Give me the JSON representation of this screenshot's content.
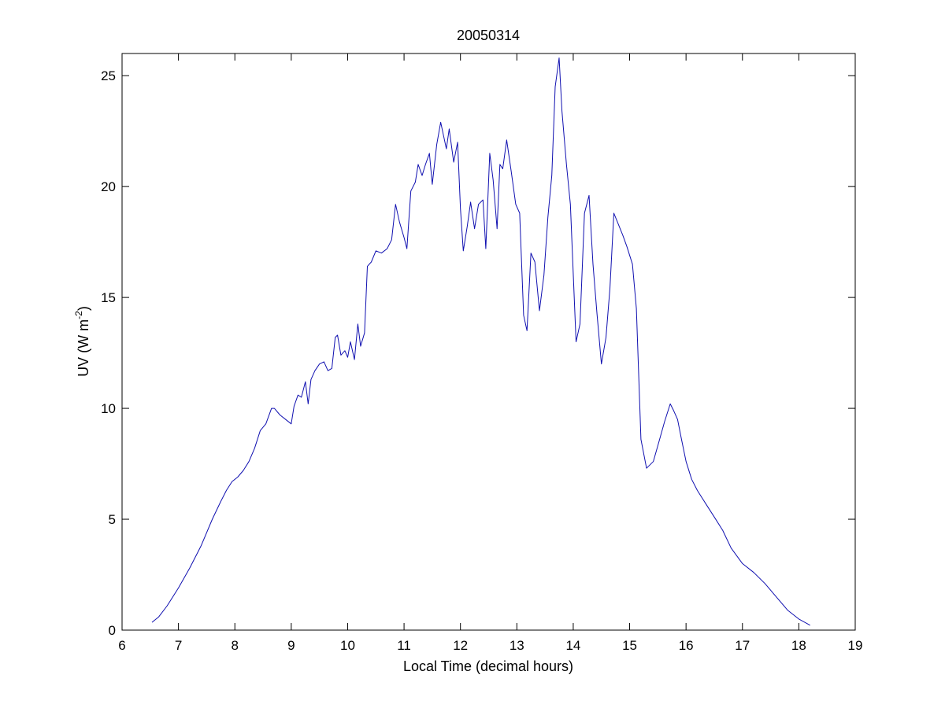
{
  "chart_data": {
    "type": "line",
    "title": "20050314",
    "xlabel": "Local Time (decimal hours)",
    "ylabel": "UV (W m",
    "ylabel_sup": "-2",
    "ylabel_close": ")",
    "xlim": [
      6,
      19
    ],
    "ylim": [
      0,
      26
    ],
    "xticks": [
      6,
      7,
      8,
      9,
      10,
      11,
      12,
      13,
      14,
      15,
      16,
      17,
      18,
      19
    ],
    "yticks": [
      0,
      5,
      10,
      15,
      20,
      25
    ],
    "grid": false,
    "legend": "none",
    "series": [
      {
        "color": "#1010b0",
        "x": [
          6.53,
          6.65,
          6.8,
          7.0,
          7.2,
          7.4,
          7.6,
          7.75,
          7.85,
          7.95,
          8.05,
          8.15,
          8.25,
          8.35,
          8.45,
          8.55,
          8.65,
          8.7,
          8.8,
          8.9,
          9.0,
          9.05,
          9.12,
          9.18,
          9.25,
          9.3,
          9.35,
          9.42,
          9.5,
          9.58,
          9.65,
          9.72,
          9.78,
          9.82,
          9.88,
          9.95,
          10.0,
          10.05,
          10.12,
          10.18,
          10.23,
          10.3,
          10.35,
          10.42,
          10.5,
          10.6,
          10.7,
          10.78,
          10.85,
          10.92,
          11.0,
          11.05,
          11.12,
          11.2,
          11.25,
          11.32,
          11.38,
          11.45,
          11.5,
          11.58,
          11.65,
          11.7,
          11.75,
          11.8,
          11.88,
          11.95,
          12.0,
          12.05,
          12.12,
          12.18,
          12.25,
          12.32,
          12.4,
          12.45,
          12.52,
          12.58,
          12.65,
          12.7,
          12.75,
          12.82,
          12.9,
          12.98,
          13.05,
          13.12,
          13.18,
          13.25,
          13.32,
          13.4,
          13.48,
          13.55,
          13.62,
          13.68,
          13.75,
          13.8,
          13.88,
          13.95,
          14.05,
          14.12,
          14.2,
          14.28,
          14.35,
          14.42,
          14.5,
          14.58,
          14.65,
          14.72,
          14.8,
          14.88,
          14.95,
          15.05,
          15.12,
          15.2,
          15.3,
          15.42,
          15.52,
          15.62,
          15.72,
          15.78,
          15.85,
          15.92,
          16.0,
          16.1,
          16.2,
          16.35,
          16.5,
          16.65,
          16.8,
          17.0,
          17.2,
          17.4,
          17.6,
          17.8,
          18.0,
          18.2
        ],
        "y": [
          0.35,
          0.6,
          1.1,
          1.9,
          2.8,
          3.8,
          5.0,
          5.8,
          6.3,
          6.7,
          6.9,
          7.2,
          7.6,
          8.2,
          9.0,
          9.3,
          10.0,
          10.0,
          9.7,
          9.5,
          9.3,
          10.1,
          10.6,
          10.5,
          11.2,
          10.2,
          11.3,
          11.7,
          12.0,
          12.1,
          11.7,
          11.8,
          13.2,
          13.3,
          12.4,
          12.6,
          12.3,
          13.0,
          12.2,
          13.8,
          12.8,
          13.4,
          16.4,
          16.6,
          17.1,
          17.0,
          17.2,
          17.6,
          19.2,
          18.4,
          17.7,
          17.2,
          19.8,
          20.2,
          21.0,
          20.5,
          21.0,
          21.5,
          20.1,
          21.9,
          22.9,
          22.3,
          21.7,
          22.6,
          21.1,
          22.0,
          19.0,
          17.1,
          18.2,
          19.3,
          18.1,
          19.2,
          19.4,
          17.2,
          21.5,
          20.3,
          18.1,
          21.0,
          20.8,
          22.1,
          20.7,
          19.2,
          18.8,
          14.2,
          13.5,
          17.0,
          16.6,
          14.4,
          16.0,
          18.6,
          20.5,
          24.5,
          25.8,
          23.4,
          21.0,
          19.2,
          13.0,
          13.8,
          18.8,
          19.6,
          16.5,
          14.3,
          12.0,
          13.2,
          15.4,
          18.8,
          18.3,
          17.8,
          17.3,
          16.5,
          14.5,
          8.6,
          7.3,
          7.6,
          8.5,
          9.4,
          10.2,
          9.9,
          9.5,
          8.6,
          7.6,
          6.8,
          6.3,
          5.7,
          5.1,
          4.5,
          3.7,
          3.0,
          2.6,
          2.1,
          1.5,
          0.9,
          0.5,
          0.22
        ]
      }
    ]
  }
}
